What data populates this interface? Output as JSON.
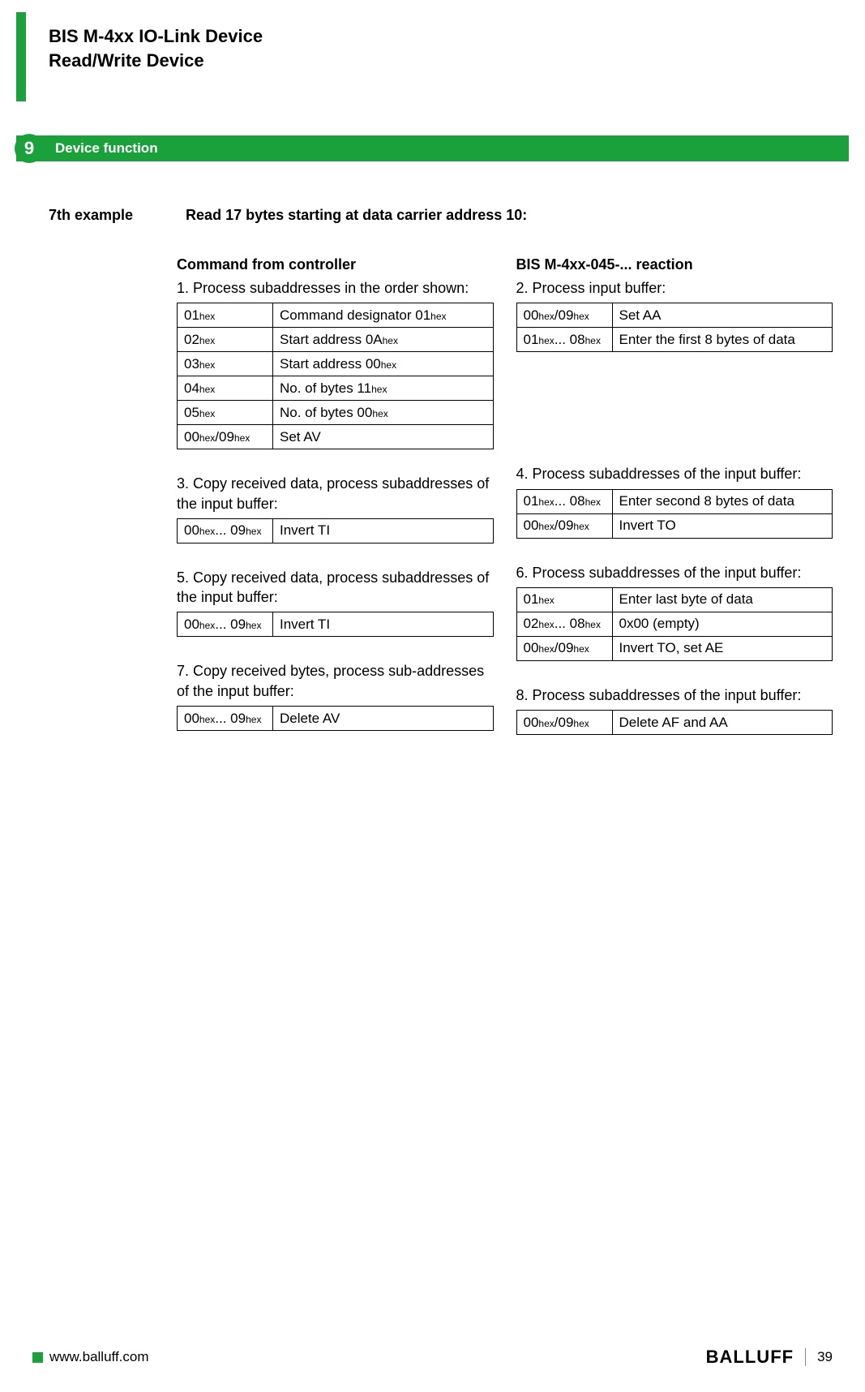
{
  "colors": {
    "accent": "#1aa13b",
    "text": "#000000",
    "bg": "#ffffff",
    "footer_sep": "#888888"
  },
  "header": {
    "title_line1": "BIS M-4xx IO-Link Device",
    "title_line2": "Read/Write Device"
  },
  "section": {
    "number": "9",
    "title": "Device function"
  },
  "example": {
    "label": "7th example",
    "title": "Read 17 bytes starting at data carrier address 10:"
  },
  "left": {
    "heading": "Command from controller",
    "step1": {
      "text": "1.  Process subaddresses in the order shown:",
      "rows": [
        {
          "addr": "01",
          "addr_suffix": "hex",
          "desc1": "Command designator 01",
          "desc1_suffix": "hex"
        },
        {
          "addr": "02",
          "addr_suffix": "hex",
          "desc1": "Start address 0A",
          "desc1_suffix": "hex"
        },
        {
          "addr": "03",
          "addr_suffix": "hex",
          "desc1": "Start address 00",
          "desc1_suffix": "hex"
        },
        {
          "addr": "04",
          "addr_suffix": "hex",
          "desc1": "No. of bytes 11",
          "desc1_suffix": "hex"
        },
        {
          "addr": "05",
          "addr_suffix": "hex",
          "desc1": "No. of bytes 00",
          "desc1_suffix": "hex"
        },
        {
          "addr": "00",
          "addr_suffix": "hex",
          "addr2": "/09",
          "addr2_suffix": "hex",
          "desc1": "Set AV"
        }
      ]
    },
    "step3": {
      "text": "3. Copy received data, process subaddresses of the input buffer:",
      "rows": [
        {
          "addr": "00",
          "addr_suffix": "hex",
          "addr2": "... 09",
          "addr2_suffix": "hex",
          "desc1": "Invert TI"
        }
      ]
    },
    "step5": {
      "text": "5. Copy received data, process subaddresses of the input buffer:",
      "rows": [
        {
          "addr": "00",
          "addr_suffix": "hex",
          "addr2": "... 09",
          "addr2_suffix": "hex",
          "desc1": "Invert TI"
        }
      ]
    },
    "step7": {
      "text": "7. Copy received bytes, process sub-addresses of the input buffer:",
      "rows": [
        {
          "addr": "00",
          "addr_suffix": "hex",
          "addr2": "... 09",
          "addr2_suffix": "hex",
          "desc1": "Delete AV"
        }
      ]
    }
  },
  "right": {
    "heading": "BIS M-4xx-045-... reaction",
    "step2": {
      "text": "2.  Process input buffer:",
      "rows": [
        {
          "addr": "00",
          "addr_suffix": "hex",
          "addr2": "/09",
          "addr2_suffix": "hex",
          "desc1": "Set AA"
        },
        {
          "addr": "01",
          "addr_suffix": "hex",
          "addr2": "... 08",
          "addr2_suffix": "hex",
          "desc1": "Enter the first 8 bytes of data"
        }
      ]
    },
    "step4": {
      "text": "4. Process subaddresses of the input buffer:",
      "rows": [
        {
          "addr": "01",
          "addr_suffix": "hex",
          "addr2": "... 08",
          "addr2_suffix": "hex",
          "desc1": "Enter second 8 bytes of data"
        },
        {
          "addr": "00",
          "addr_suffix": "hex",
          "addr2": "/09",
          "addr2_suffix": "hex",
          "desc1": "Invert TO"
        }
      ]
    },
    "step6": {
      "text": "6. Process subaddresses of the input buffer:",
      "rows": [
        {
          "addr": "01",
          "addr_suffix": "hex",
          "desc1": "Enter last byte of data"
        },
        {
          "addr": "02",
          "addr_suffix": "hex",
          "addr2": "... 08",
          "addr2_suffix": "hex",
          "desc1": "0x00 (empty)"
        },
        {
          "addr": "00",
          "addr_suffix": "hex",
          "addr2": "/09",
          "addr2_suffix": "hex",
          "desc1": "Invert TO, set AE"
        }
      ]
    },
    "step8": {
      "text": "8. Process subaddresses of the input buffer:",
      "rows": [
        {
          "addr": "00",
          "addr_suffix": "hex",
          "addr2": "/09",
          "addr2_suffix": "hex",
          "desc1": "Delete AF and AA"
        }
      ]
    }
  },
  "footer": {
    "url": "www.balluff.com",
    "brand": "BALLUFF",
    "page": "39"
  }
}
